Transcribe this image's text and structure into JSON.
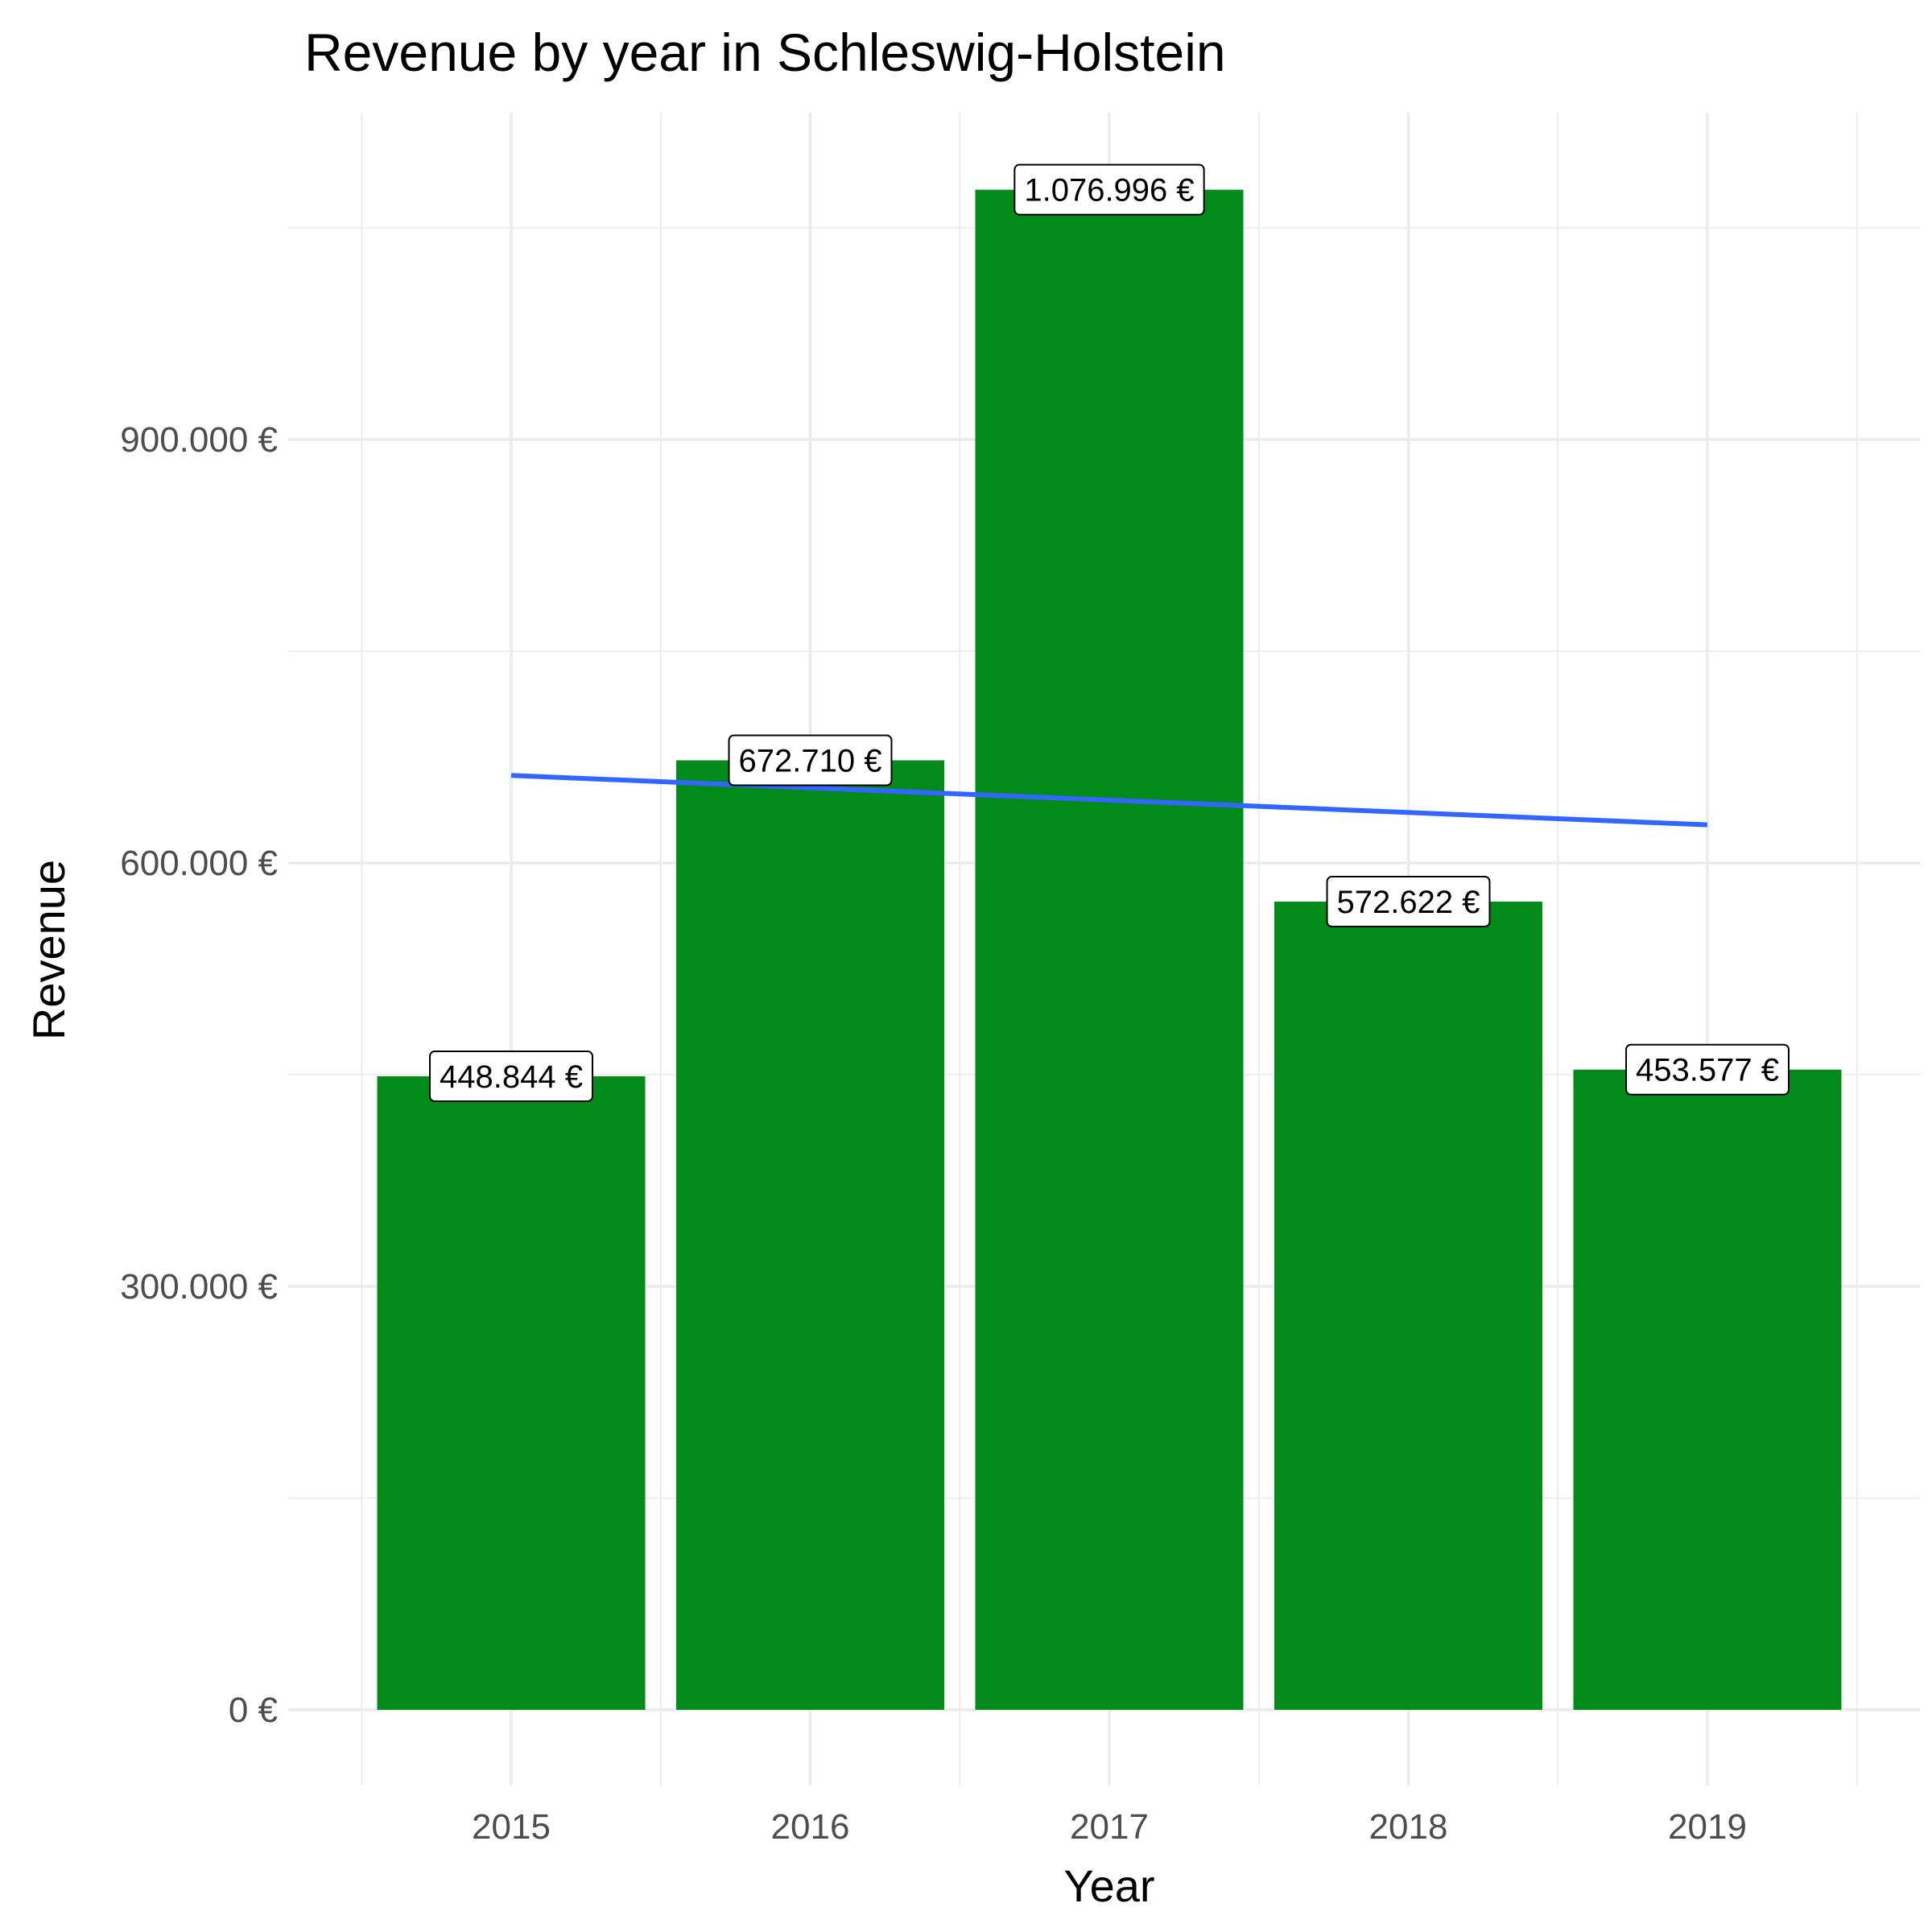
{
  "chart_data": {
    "type": "bar",
    "title": "Revenue by year in Schleswig-Holstein",
    "xlabel": "Year",
    "ylabel": "Revenue",
    "categories": [
      "2015",
      "2016",
      "2017",
      "2018",
      "2019"
    ],
    "values": [
      448844,
      672710,
      1076996,
      572622,
      453577
    ],
    "data_labels": [
      "448.844 €",
      "672.710 €",
      "1.076.996 €",
      "572.622 €",
      "453.577 €"
    ],
    "yticks": [
      0,
      300000,
      600000,
      900000
    ],
    "ytick_labels": [
      "0 €",
      "300.000 €",
      "600.000 €",
      "900.000 €"
    ],
    "ylim": [
      -45000,
      1130000
    ],
    "trend_line": {
      "start": 662000,
      "end": 627000
    },
    "grid": true,
    "legend": "none",
    "colors": {
      "bar": "#028a1a",
      "trend": "#3366ff",
      "grid": "#ebebeb"
    }
  }
}
